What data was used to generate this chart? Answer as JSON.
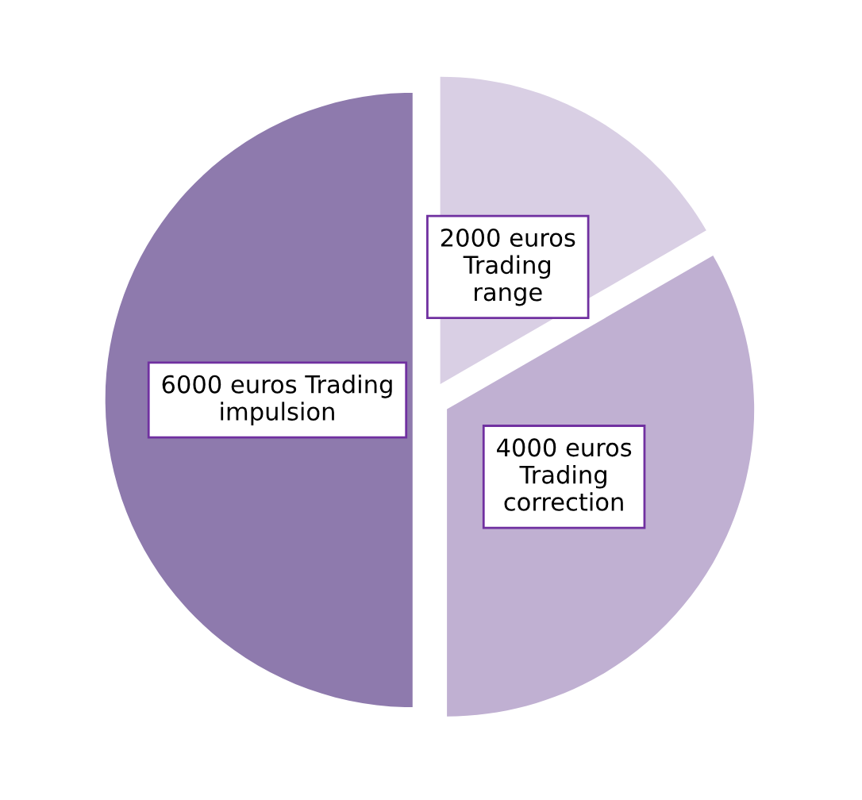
{
  "chart_data": {
    "type": "pie",
    "categories": [
      "6000 euros Trading\nimpulsion",
      "4000 euros\nTrading\ncorrection",
      "2000 euros\nTrading\nrange"
    ],
    "values": [
      6000,
      4000,
      2000
    ],
    "colors": [
      "#8e7aad",
      "#c0b0d2",
      "#d9cfe4"
    ],
    "legend": false
  }
}
